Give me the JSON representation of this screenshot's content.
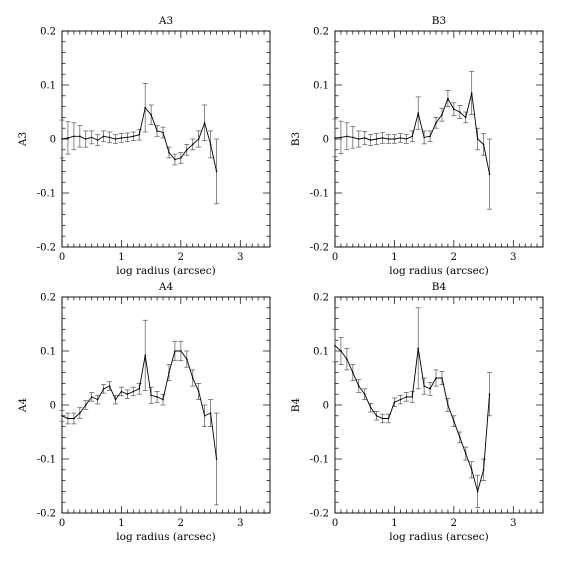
{
  "chart_data": [
    {
      "type": "line",
      "title": "A3",
      "xlabel": "log radius (arcsec)",
      "ylabel": "A3",
      "xlim": [
        0,
        3.5
      ],
      "ylim": [
        -0.2,
        0.2
      ],
      "xticks": [
        "0",
        "1",
        "2",
        "3"
      ],
      "yticks": [
        "-0.2",
        "-0.1",
        "0",
        "0.1",
        "0.2"
      ],
      "grid": false,
      "series": [
        {
          "x": [
            0.0,
            0.1,
            0.2,
            0.3,
            0.4,
            0.5,
            0.6,
            0.7,
            0.8,
            0.9,
            1.0,
            1.1,
            1.2,
            1.3,
            1.4,
            1.5,
            1.6,
            1.7,
            1.8,
            1.9,
            2.0,
            2.1,
            2.2,
            2.3,
            2.4,
            2.5,
            2.6
          ],
          "y": [
            0.0,
            0.002,
            0.005,
            0.005,
            0.0,
            0.003,
            -0.002,
            0.005,
            0.003,
            0.0,
            0.002,
            0.003,
            0.005,
            0.008,
            0.058,
            0.045,
            0.015,
            0.012,
            -0.025,
            -0.038,
            -0.035,
            -0.02,
            -0.01,
            0.0,
            0.03,
            -0.01,
            -0.06
          ],
          "err": [
            0.035,
            0.03,
            0.025,
            0.02,
            0.015,
            0.012,
            0.01,
            0.01,
            0.01,
            0.008,
            0.008,
            0.008,
            0.008,
            0.01,
            0.045,
            0.018,
            0.01,
            0.01,
            0.01,
            0.01,
            0.01,
            0.01,
            0.01,
            0.015,
            0.033,
            0.025,
            0.06
          ]
        }
      ]
    },
    {
      "type": "line",
      "title": "B3",
      "xlabel": "log radius (arcsec)",
      "ylabel": "B3",
      "xlim": [
        0,
        3.5
      ],
      "ylim": [
        -0.2,
        0.2
      ],
      "xticks": [
        "0",
        "1",
        "2",
        "3"
      ],
      "yticks": [
        "-0.2",
        "-0.1",
        "0",
        "0.1",
        "0.2"
      ],
      "grid": false,
      "series": [
        {
          "x": [
            0.0,
            0.1,
            0.2,
            0.3,
            0.4,
            0.5,
            0.6,
            0.7,
            0.8,
            0.9,
            1.0,
            1.1,
            1.2,
            1.3,
            1.4,
            1.5,
            1.6,
            1.7,
            1.8,
            1.9,
            2.0,
            2.1,
            2.2,
            2.3,
            2.4,
            2.5,
            2.6
          ],
          "y": [
            0.002,
            0.003,
            0.005,
            0.003,
            0.0,
            0.002,
            -0.002,
            0.0,
            0.002,
            0.0,
            0.0,
            0.002,
            0.0,
            0.005,
            0.048,
            0.003,
            0.005,
            0.03,
            0.045,
            0.075,
            0.055,
            0.05,
            0.04,
            0.085,
            0.0,
            -0.01,
            -0.065
          ],
          "err": [
            0.035,
            0.03,
            0.025,
            0.02,
            0.015,
            0.012,
            0.01,
            0.01,
            0.01,
            0.008,
            0.008,
            0.008,
            0.008,
            0.01,
            0.03,
            0.012,
            0.01,
            0.01,
            0.012,
            0.015,
            0.012,
            0.012,
            0.01,
            0.04,
            0.02,
            0.02,
            0.065
          ]
        }
      ]
    },
    {
      "type": "line",
      "title": "A4",
      "xlabel": "log radius (arcsec)",
      "ylabel": "A4",
      "xlim": [
        0,
        3.5
      ],
      "ylim": [
        -0.2,
        0.2
      ],
      "xticks": [
        "0",
        "1",
        "2",
        "3"
      ],
      "yticks": [
        "-0.2",
        "-0.1",
        "0",
        "0.1",
        "0.2"
      ],
      "grid": false,
      "series": [
        {
          "x": [
            0.0,
            0.1,
            0.2,
            0.3,
            0.4,
            0.5,
            0.6,
            0.7,
            0.8,
            0.9,
            1.0,
            1.1,
            1.2,
            1.3,
            1.4,
            1.5,
            1.6,
            1.7,
            1.8,
            1.9,
            2.0,
            2.1,
            2.2,
            2.3,
            2.4,
            2.5,
            2.6
          ],
          "y": [
            -0.02,
            -0.025,
            -0.025,
            -0.015,
            0.0,
            0.015,
            0.01,
            0.03,
            0.035,
            0.01,
            0.025,
            0.02,
            0.025,
            0.03,
            0.092,
            0.018,
            0.015,
            0.01,
            0.06,
            0.1,
            0.1,
            0.085,
            0.05,
            0.025,
            -0.02,
            -0.015,
            -0.1
          ]
        }
      ],
      "err_note": "",
      "series_err": [
        0.01,
        0.01,
        0.01,
        0.01,
        0.008,
        0.008,
        0.008,
        0.008,
        0.008,
        0.008,
        0.008,
        0.008,
        0.008,
        0.01,
        0.065,
        0.015,
        0.01,
        0.01,
        0.015,
        0.018,
        0.018,
        0.015,
        0.015,
        0.015,
        0.02,
        0.025,
        0.085
      ]
    },
    {
      "type": "line",
      "title": "B4",
      "xlabel": "log radius (arcsec)",
      "ylabel": "B4",
      "xlim": [
        0,
        3.5
      ],
      "ylim": [
        -0.2,
        0.2
      ],
      "xticks": [
        "0",
        "1",
        "2",
        "3"
      ],
      "yticks": [
        "-0.2",
        "-0.1",
        "0",
        "0.1",
        "0.2"
      ],
      "grid": false,
      "series": [
        {
          "x": [
            0.0,
            0.1,
            0.2,
            0.3,
            0.4,
            0.5,
            0.6,
            0.7,
            0.8,
            0.9,
            1.0,
            1.1,
            1.2,
            1.3,
            1.4,
            1.5,
            1.6,
            1.7,
            1.8,
            1.9,
            2.0,
            2.1,
            2.2,
            2.3,
            2.4,
            2.5,
            2.6
          ],
          "y": [
            0.11,
            0.1,
            0.085,
            0.06,
            0.035,
            0.02,
            -0.005,
            -0.02,
            -0.025,
            -0.025,
            0.005,
            0.01,
            0.015,
            0.015,
            0.105,
            0.035,
            0.03,
            0.05,
            0.05,
            0.0,
            -0.03,
            -0.06,
            -0.09,
            -0.12,
            -0.16,
            -0.12,
            0.02
          ]
        }
      ],
      "series_err": [
        0.03,
        0.025,
        0.02,
        0.015,
        0.012,
        0.01,
        0.008,
        0.008,
        0.008,
        0.008,
        0.008,
        0.008,
        0.008,
        0.01,
        0.075,
        0.015,
        0.012,
        0.015,
        0.012,
        0.012,
        0.01,
        0.01,
        0.012,
        0.015,
        0.03,
        0.02,
        0.04
      ]
    }
  ]
}
